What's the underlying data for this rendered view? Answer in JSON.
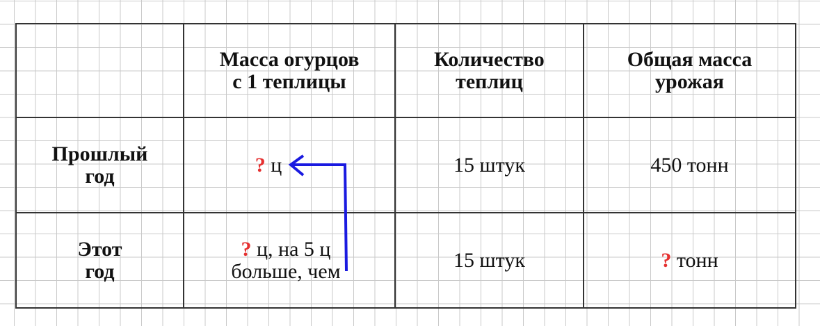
{
  "table": {
    "headers": [
      "",
      "Масса огурцов\nс 1 теплицы",
      "Количество\nтеплиц",
      "Общая масса\nурожая"
    ],
    "header_lines": {
      "mass": [
        "Масса огурцов",
        "с 1 теплицы"
      ],
      "count": [
        "Количество",
        "теплиц"
      ],
      "total": [
        "Общая масса",
        "урожая"
      ]
    },
    "rows": [
      {
        "label": [
          "Прошлый",
          "год"
        ],
        "mass_q": "?",
        "mass": " ц",
        "count": "15 штук",
        "total_q": "",
        "total": "450 тонн"
      },
      {
        "label": [
          "Этот",
          "год"
        ],
        "mass_q": "?",
        "mass": " ц, на 5 ц",
        "mass2": "больше, чем",
        "count": "15 штук",
        "total_q": "?",
        "total": " тонн"
      }
    ]
  },
  "colors": {
    "question": "#e53030",
    "arrow": "#1a1ae0"
  }
}
